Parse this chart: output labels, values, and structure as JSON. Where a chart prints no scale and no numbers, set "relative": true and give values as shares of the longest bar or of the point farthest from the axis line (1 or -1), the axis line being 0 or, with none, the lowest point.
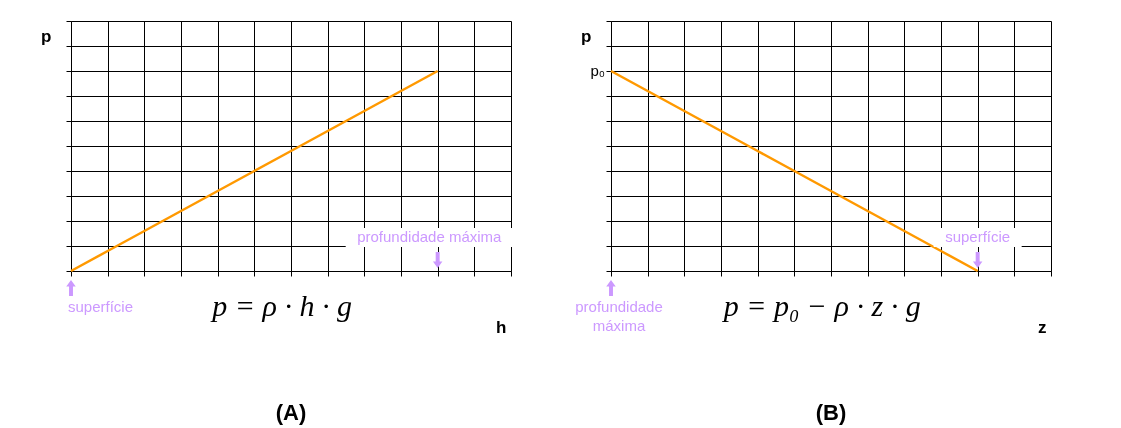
{
  "chart_data": [
    {
      "type": "line",
      "title": "(A)",
      "xlabel": "h",
      "ylabel": "p",
      "relative": true,
      "grid": true,
      "categories": [
        null,
        null,
        null,
        null,
        null,
        null,
        null,
        null,
        null,
        null,
        null,
        null,
        null
      ],
      "series": [
        {
          "color": "#ff9900",
          "values": [
            0,
            0.1,
            0.2,
            0.3,
            0.4,
            0.5,
            0.6,
            0.7,
            0.8,
            0.9,
            1,
            null,
            null
          ]
        }
      ],
      "annotations": [
        "superfície",
        "profundidade máxima",
        "p = ρ · h · g"
      ]
    },
    {
      "type": "line",
      "title": "(B)",
      "xlabel": "z",
      "ylabel": "p",
      "relative": true,
      "grid": true,
      "categories": [
        null,
        null,
        null,
        null,
        null,
        null,
        null,
        null,
        null,
        null,
        null,
        null,
        null
      ],
      "series": [
        {
          "color": "#ff9900",
          "values": [
            1,
            0.9,
            0.8,
            0.7,
            0.6,
            0.5,
            0.4,
            0.3,
            0.2,
            0.1,
            0,
            null,
            null
          ]
        }
      ],
      "annotations": [
        "p₀",
        "superfície",
        "profundidade máxima",
        "p = p₀ − ρ · z · g"
      ]
    }
  ]
}
